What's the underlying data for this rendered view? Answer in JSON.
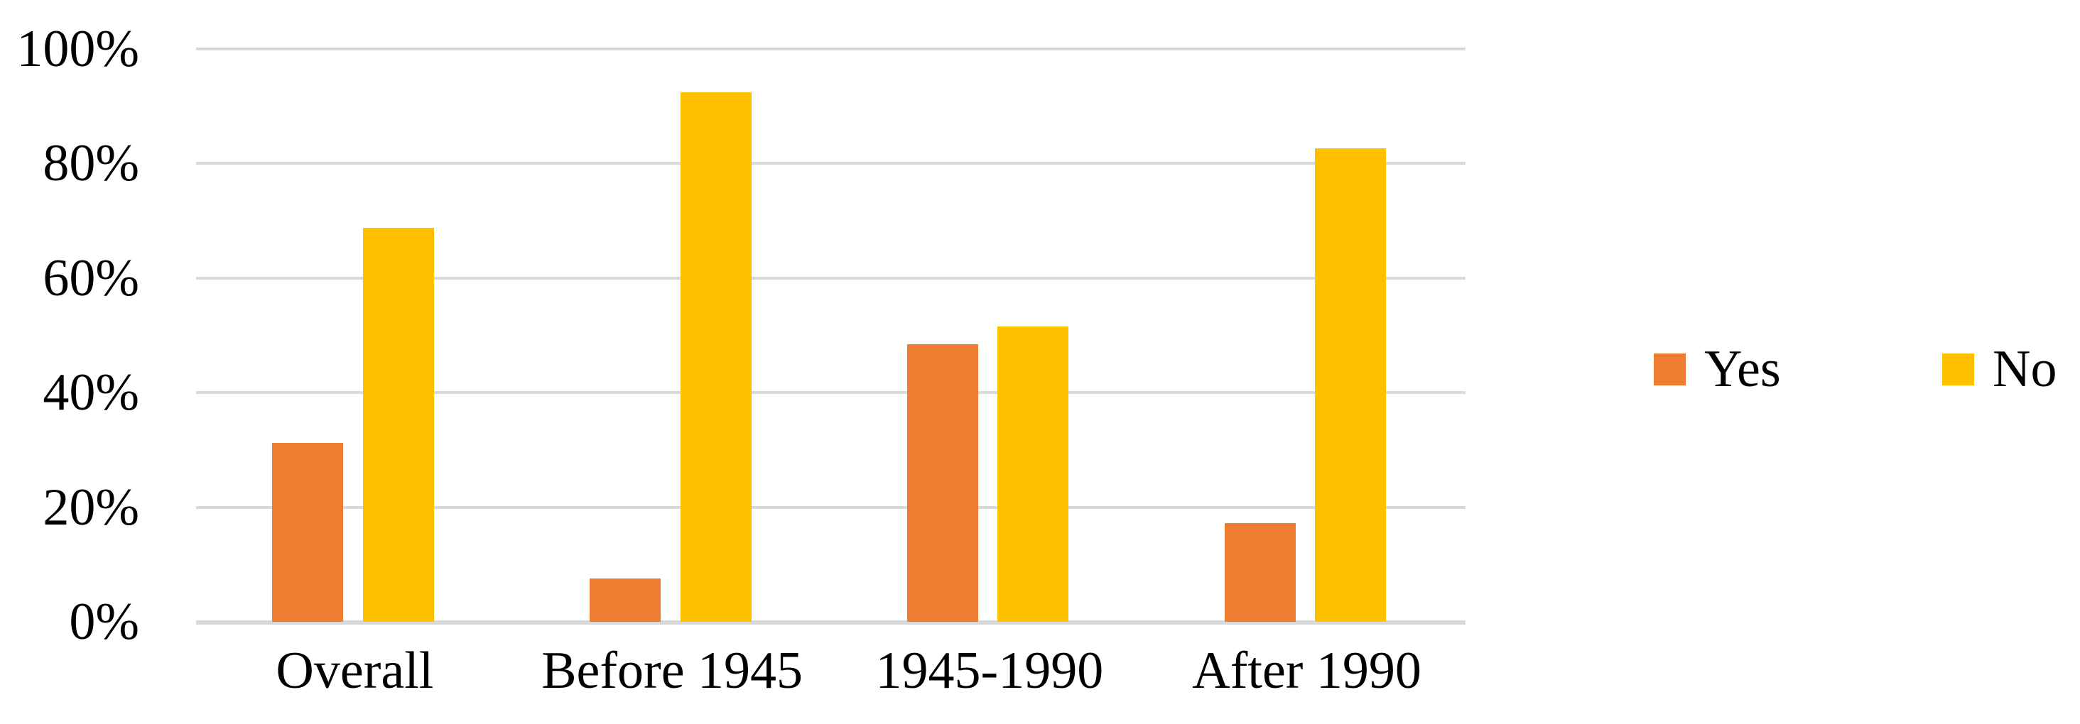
{
  "chart_data": {
    "type": "bar",
    "categories": [
      "Overall",
      "Before 1945",
      "1945-1990",
      "After 1990"
    ],
    "series": [
      {
        "name": "Yes",
        "color": "#ED7D31",
        "values": [
          31.2,
          7.6,
          48.4,
          17.2
        ]
      },
      {
        "name": "No",
        "color": "#FFC000",
        "values": [
          68.8,
          92.4,
          51.6,
          82.6
        ]
      }
    ],
    "y_axis": {
      "tick_labels": [
        "0%",
        "20%",
        "40%",
        "60%",
        "80%",
        "100%"
      ],
      "min": 0,
      "max": 100,
      "step": 20
    },
    "grid": "horizontal gridlines on",
    "gridline_color": "#D9D9D9",
    "axis_line_color": "#D9D9D9",
    "text_color": "#000000",
    "background_color": "#FFFFFF",
    "legend": {
      "position": "right-center",
      "items": [
        "Yes",
        "No"
      ]
    }
  }
}
